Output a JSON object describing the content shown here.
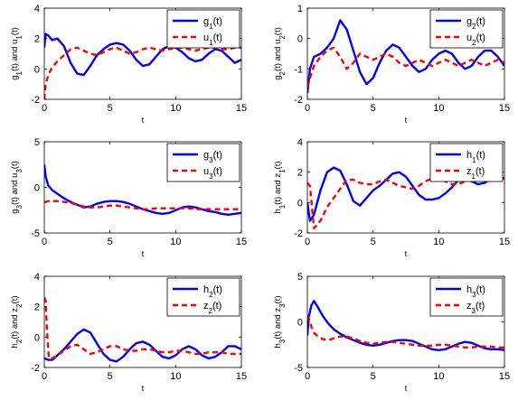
{
  "chart_data": [
    {
      "type": "line",
      "xlabel": "t",
      "ylabel": "g₁(t) and u₁(t)",
      "ylabel_parts": [
        "g",
        "1",
        "(t) and u",
        "1",
        "(t)"
      ],
      "xlim": [
        0,
        15
      ],
      "ylim": [
        -2,
        4
      ],
      "xticks": [
        0,
        5,
        10,
        15
      ],
      "yticks": [
        -2,
        0,
        2,
        4
      ],
      "legend_position": "top-right",
      "series": [
        {
          "name": "g₁(t)",
          "name_parts": [
            "g",
            "1",
            "(t)"
          ],
          "style": "solid",
          "color": "#0000ff",
          "x": [
            0.0,
            0.1,
            0.3,
            0.6,
            1.0,
            1.5,
            2.0,
            2.5,
            3.0,
            3.5,
            4.0,
            4.5,
            5.0,
            5.5,
            6.0,
            6.5,
            7.0,
            7.5,
            8.0,
            8.5,
            9.0,
            9.5,
            10.0,
            10.5,
            11.0,
            11.5,
            12.0,
            12.5,
            13.0,
            13.5,
            14.0,
            14.5,
            15.0
          ],
          "y": [
            1.4,
            2.3,
            2.2,
            1.9,
            2.0,
            1.5,
            0.4,
            -0.3,
            -0.4,
            0.2,
            0.9,
            1.3,
            1.6,
            1.7,
            1.6,
            1.2,
            0.6,
            0.2,
            0.3,
            0.8,
            1.3,
            1.5,
            1.4,
            1.1,
            0.7,
            0.5,
            0.6,
            1.0,
            1.3,
            1.2,
            0.8,
            0.4,
            0.6
          ]
        },
        {
          "name": "u₁(t)",
          "name_parts": [
            "u",
            "1",
            "(t)"
          ],
          "style": "dashed",
          "color": "#ff0000",
          "x": [
            0.0,
            0.1,
            0.3,
            0.6,
            1.0,
            1.5,
            2.0,
            2.5,
            3.0,
            3.5,
            4.0,
            4.5,
            5.0,
            5.5,
            6.0,
            6.5,
            7.0,
            7.5,
            8.0,
            8.5,
            9.0,
            9.5,
            10.0,
            10.5,
            11.0,
            11.5,
            12.0,
            12.5,
            13.0,
            13.5,
            14.0,
            14.5,
            15.0
          ],
          "y": [
            -2.0,
            -1.0,
            -0.4,
            0.1,
            0.5,
            0.9,
            1.3,
            1.4,
            1.2,
            1.0,
            0.9,
            1.1,
            1.3,
            1.4,
            1.2,
            1.0,
            1.1,
            1.3,
            1.4,
            1.3,
            1.2,
            1.3,
            1.4,
            1.4,
            1.3,
            1.2,
            1.3,
            1.4,
            1.4,
            1.3,
            1.3,
            1.4,
            1.4
          ]
        }
      ]
    },
    {
      "type": "line",
      "xlabel": "t",
      "ylabel": "g₂(t) and u₂(t)",
      "ylabel_parts": [
        "g",
        "2",
        "(t) and u",
        "2",
        "(t)"
      ],
      "xlim": [
        0,
        15
      ],
      "ylim": [
        -2,
        1
      ],
      "xticks": [
        0,
        5,
        10,
        15
      ],
      "yticks": [
        -2,
        -1,
        0,
        1
      ],
      "legend_position": "top-right",
      "series": [
        {
          "name": "g₂(t)",
          "name_parts": [
            "g",
            "2",
            "(t)"
          ],
          "style": "solid",
          "color": "#0000ff",
          "x": [
            0.0,
            0.2,
            0.5,
            1.0,
            1.5,
            2.0,
            2.5,
            3.0,
            3.5,
            4.0,
            4.5,
            5.0,
            5.5,
            6.0,
            6.5,
            7.0,
            7.5,
            8.0,
            8.5,
            9.0,
            9.5,
            10.0,
            10.5,
            11.0,
            11.5,
            12.0,
            12.5,
            13.0,
            13.5,
            14.0,
            14.5,
            15.0
          ],
          "y": [
            -1.8,
            -1.0,
            -0.6,
            -0.5,
            -0.3,
            0.0,
            0.6,
            0.3,
            -0.4,
            -1.1,
            -1.5,
            -1.3,
            -0.8,
            -0.4,
            -0.2,
            -0.3,
            -0.6,
            -0.9,
            -1.1,
            -1.0,
            -0.7,
            -0.5,
            -0.4,
            -0.5,
            -0.8,
            -1.0,
            -0.9,
            -0.6,
            -0.4,
            -0.4,
            -0.6,
            -0.9
          ]
        },
        {
          "name": "u₂(t)",
          "name_parts": [
            "u",
            "2",
            "(t)"
          ],
          "style": "dashed",
          "color": "#ff0000",
          "x": [
            0.0,
            0.2,
            0.5,
            1.0,
            1.5,
            2.0,
            2.5,
            3.0,
            3.5,
            4.0,
            4.5,
            5.0,
            5.5,
            6.0,
            6.5,
            7.0,
            7.5,
            8.0,
            8.5,
            9.0,
            9.5,
            10.0,
            10.5,
            11.0,
            11.5,
            12.0,
            12.5,
            13.0,
            13.5,
            14.0,
            14.5,
            15.0
          ],
          "y": [
            -1.6,
            -1.3,
            -0.9,
            -0.6,
            -0.4,
            -0.3,
            -0.6,
            -1.0,
            -0.8,
            -0.5,
            -0.6,
            -0.7,
            -0.6,
            -0.5,
            -0.6,
            -0.8,
            -0.9,
            -0.8,
            -0.7,
            -0.8,
            -0.9,
            -0.8,
            -0.7,
            -0.8,
            -0.9,
            -0.8,
            -0.7,
            -0.8,
            -0.9,
            -0.8,
            -0.7,
            -0.8
          ]
        }
      ]
    },
    {
      "type": "line",
      "xlabel": "t",
      "ylabel": "g₃(t) and u₃(t)",
      "ylabel_parts": [
        "g",
        "3",
        "(t) and u",
        "3",
        "(t)"
      ],
      "xlim": [
        0,
        15
      ],
      "ylim": [
        -5,
        5
      ],
      "xticks": [
        0,
        5,
        10,
        15
      ],
      "yticks": [
        -5,
        0,
        5
      ],
      "legend_position": "top-right",
      "series": [
        {
          "name": "g₃(t)",
          "name_parts": [
            "g",
            "3",
            "(t)"
          ],
          "style": "solid",
          "color": "#0000ff",
          "x": [
            0.0,
            0.1,
            0.3,
            0.6,
            1.0,
            1.5,
            2.0,
            2.5,
            3.0,
            3.5,
            4.0,
            4.5,
            5.0,
            5.5,
            6.0,
            6.5,
            7.0,
            7.5,
            8.0,
            8.5,
            9.0,
            9.5,
            10.0,
            10.5,
            11.0,
            11.5,
            12.0,
            12.5,
            13.0,
            13.5,
            14.0,
            14.5,
            15.0
          ],
          "y": [
            2.5,
            1.2,
            0.2,
            -0.3,
            -0.7,
            -1.2,
            -1.6,
            -1.9,
            -2.2,
            -2.1,
            -1.8,
            -1.6,
            -1.5,
            -1.5,
            -1.6,
            -1.8,
            -2.1,
            -2.4,
            -2.6,
            -2.8,
            -2.9,
            -2.8,
            -2.5,
            -2.2,
            -2.1,
            -2.2,
            -2.4,
            -2.6,
            -2.7,
            -2.9,
            -3.0,
            -2.9,
            -2.8
          ]
        },
        {
          "name": "u₃(t)",
          "name_parts": [
            "u",
            "3",
            "(t)"
          ],
          "style": "dashed",
          "color": "#ff0000",
          "x": [
            0.0,
            0.1,
            0.3,
            0.6,
            1.0,
            1.5,
            2.0,
            2.5,
            3.0,
            3.5,
            4.0,
            4.5,
            5.0,
            5.5,
            6.0,
            6.5,
            7.0,
            7.5,
            8.0,
            8.5,
            9.0,
            9.5,
            10.0,
            10.5,
            11.0,
            11.5,
            12.0,
            12.5,
            13.0,
            13.5,
            14.0,
            14.5,
            15.0
          ],
          "y": [
            -1.6,
            -1.6,
            -1.5,
            -1.5,
            -1.5,
            -1.6,
            -1.7,
            -1.9,
            -2.1,
            -2.2,
            -2.2,
            -2.1,
            -2.0,
            -2.0,
            -2.1,
            -2.2,
            -2.3,
            -2.4,
            -2.4,
            -2.3,
            -2.3,
            -2.3,
            -2.3,
            -2.3,
            -2.3,
            -2.4,
            -2.4,
            -2.4,
            -2.4,
            -2.4,
            -2.4,
            -2.4,
            -2.4
          ]
        }
      ]
    },
    {
      "type": "line",
      "xlabel": "t",
      "ylabel": "h₁(t) and z₁(t)",
      "ylabel_parts": [
        "h",
        "1",
        "(t) and z",
        "1",
        "(t)"
      ],
      "xlim": [
        0,
        15
      ],
      "ylim": [
        -2,
        4
      ],
      "xticks": [
        0,
        5,
        10,
        15
      ],
      "yticks": [
        -2,
        0,
        2,
        4
      ],
      "legend_position": "top-right",
      "series": [
        {
          "name": "h₁(t)",
          "name_parts": [
            "h",
            "1",
            "(t)"
          ],
          "style": "solid",
          "color": "#0000ff",
          "x": [
            0.0,
            0.2,
            0.5,
            1.0,
            1.5,
            2.0,
            2.5,
            3.0,
            3.5,
            4.0,
            4.5,
            5.0,
            5.5,
            6.0,
            6.5,
            7.0,
            7.5,
            8.0,
            8.5,
            9.0,
            9.5,
            10.0,
            10.5,
            11.0,
            11.5,
            12.0,
            12.5,
            13.0,
            13.5,
            14.0,
            14.5,
            15.0
          ],
          "y": [
            0.0,
            -1.2,
            -0.8,
            0.8,
            2.0,
            2.3,
            2.1,
            1.2,
            0.1,
            -0.2,
            0.3,
            0.8,
            1.1,
            1.5,
            1.9,
            2.0,
            1.7,
            1.1,
            0.5,
            0.2,
            0.2,
            0.3,
            0.6,
            1.0,
            1.5,
            1.6,
            1.4,
            1.2,
            1.3,
            1.6,
            1.7,
            1.6
          ]
        },
        {
          "name": "z₁(t)",
          "name_parts": [
            "z",
            "1",
            "(t)"
          ],
          "style": "dashed",
          "color": "#ff0000",
          "x": [
            0.0,
            0.2,
            0.5,
            1.0,
            1.5,
            2.0,
            2.5,
            3.0,
            3.5,
            4.0,
            4.5,
            5.0,
            5.5,
            6.0,
            6.5,
            7.0,
            7.5,
            8.0,
            8.5,
            9.0,
            9.5,
            10.0,
            10.5,
            11.0,
            11.5,
            12.0,
            12.5,
            13.0,
            13.5,
            14.0,
            14.5,
            15.0
          ],
          "y": [
            1.3,
            1.1,
            -1.7,
            -1.2,
            -0.3,
            0.3,
            0.9,
            1.5,
            1.5,
            1.3,
            1.2,
            1.2,
            1.4,
            1.5,
            1.3,
            1.1,
            1.0,
            0.9,
            1.1,
            1.4,
            1.6,
            1.6,
            1.4,
            1.2,
            1.2,
            1.4,
            1.6,
            1.6,
            1.5,
            1.4,
            1.5,
            1.6
          ]
        }
      ]
    },
    {
      "type": "line",
      "xlabel": "t",
      "ylabel": "h₂(t) and z₂(t)",
      "ylabel_parts": [
        "h",
        "2",
        "(t) and z",
        "2",
        "(t)"
      ],
      "xlim": [
        0,
        15
      ],
      "ylim": [
        -2,
        4
      ],
      "xticks": [
        0,
        5,
        10,
        15
      ],
      "yticks": [
        -2,
        0,
        2,
        4
      ],
      "legend_position": "top-right",
      "series": [
        {
          "name": "h₂(t)",
          "name_parts": [
            "h",
            "2",
            "(t)"
          ],
          "style": "solid",
          "color": "#0000ff",
          "x": [
            0.0,
            0.3,
            0.6,
            1.0,
            1.5,
            2.0,
            2.5,
            3.0,
            3.5,
            4.0,
            4.5,
            5.0,
            5.5,
            6.0,
            6.5,
            7.0,
            7.5,
            8.0,
            8.5,
            9.0,
            9.5,
            10.0,
            10.5,
            11.0,
            11.5,
            12.0,
            12.5,
            13.0,
            13.5,
            14.0,
            14.5,
            15.0
          ],
          "y": [
            -1.4,
            -1.5,
            -1.5,
            -1.2,
            -0.8,
            -0.3,
            0.2,
            0.5,
            0.3,
            -0.4,
            -1.1,
            -1.5,
            -1.6,
            -1.3,
            -0.8,
            -0.4,
            -0.3,
            -0.5,
            -0.9,
            -1.3,
            -1.4,
            -1.2,
            -0.8,
            -0.6,
            -0.8,
            -1.2,
            -1.4,
            -1.3,
            -1.0,
            -0.6,
            -0.6,
            -0.8
          ]
        },
        {
          "name": "z₂(t)",
          "name_parts": [
            "z",
            "2",
            "(t)"
          ],
          "style": "dashed",
          "color": "#ff0000",
          "x": [
            0.0,
            0.1,
            0.2,
            0.35,
            0.6,
            1.0,
            1.5,
            2.0,
            2.5,
            3.0,
            3.5,
            4.0,
            4.5,
            5.0,
            5.5,
            6.0,
            6.5,
            7.0,
            7.5,
            8.0,
            8.5,
            9.0,
            9.5,
            10.0,
            10.5,
            11.0,
            11.5,
            12.0,
            12.5,
            13.0,
            13.5,
            14.0,
            14.5,
            15.0
          ],
          "y": [
            2.6,
            2.4,
            0.5,
            -1.4,
            -1.4,
            -1.2,
            -0.9,
            -0.6,
            -0.5,
            -0.8,
            -1.1,
            -1.0,
            -0.8,
            -0.6,
            -0.6,
            -0.8,
            -0.9,
            -0.9,
            -0.8,
            -0.8,
            -0.9,
            -1.0,
            -1.0,
            -0.9,
            -0.9,
            -1.0,
            -1.1,
            -1.1,
            -1.0,
            -1.0,
            -1.0,
            -1.1,
            -1.1,
            -1.1
          ]
        }
      ]
    },
    {
      "type": "line",
      "xlabel": "t",
      "ylabel": "h₃(t) and z₃(t)",
      "ylabel_parts": [
        "h",
        "3",
        "(t) and z",
        "3",
        "(t)"
      ],
      "xlim": [
        0,
        15
      ],
      "ylim": [
        -5,
        5
      ],
      "xticks": [
        0,
        5,
        10,
        15
      ],
      "yticks": [
        -5,
        0,
        5
      ],
      "legend_position": "top-right",
      "series": [
        {
          "name": "h₃(t)",
          "name_parts": [
            "h",
            "3",
            "(t)"
          ],
          "style": "solid",
          "color": "#0000ff",
          "x": [
            0.0,
            0.1,
            0.3,
            0.5,
            0.8,
            1.2,
            1.6,
            2.0,
            2.5,
            3.0,
            3.5,
            4.0,
            4.5,
            5.0,
            5.5,
            6.0,
            6.5,
            7.0,
            7.5,
            8.0,
            8.5,
            9.0,
            9.5,
            10.0,
            10.5,
            11.0,
            11.5,
            12.0,
            12.5,
            13.0,
            13.5,
            14.0,
            14.5,
            15.0
          ],
          "y": [
            -1.5,
            0.5,
            1.8,
            2.3,
            1.6,
            0.6,
            -0.2,
            -0.8,
            -1.3,
            -1.7,
            -2.0,
            -2.3,
            -2.5,
            -2.6,
            -2.5,
            -2.3,
            -2.1,
            -2.0,
            -2.0,
            -2.1,
            -2.4,
            -2.7,
            -3.0,
            -3.1,
            -3.0,
            -2.7,
            -2.4,
            -2.2,
            -2.3,
            -2.6,
            -2.9,
            -3.0,
            -3.0,
            -3.1
          ]
        },
        {
          "name": "z₃(t)",
          "name_parts": [
            "z",
            "3",
            "(t)"
          ],
          "style": "dashed",
          "color": "#ff0000",
          "x": [
            0.0,
            0.1,
            0.3,
            0.5,
            0.8,
            1.2,
            1.6,
            2.0,
            2.5,
            3.0,
            3.5,
            4.0,
            4.5,
            5.0,
            5.5,
            6.0,
            6.5,
            7.0,
            7.5,
            8.0,
            8.5,
            9.0,
            9.5,
            10.0,
            10.5,
            11.0,
            11.5,
            12.0,
            12.5,
            13.0,
            13.5,
            14.0,
            14.5,
            15.0
          ],
          "y": [
            0.7,
            0.4,
            -0.5,
            -1.2,
            -1.6,
            -1.9,
            -2.0,
            -1.8,
            -1.6,
            -1.6,
            -1.8,
            -2.1,
            -2.3,
            -2.4,
            -2.3,
            -2.2,
            -2.2,
            -2.3,
            -2.4,
            -2.5,
            -2.6,
            -2.6,
            -2.6,
            -2.5,
            -2.5,
            -2.6,
            -2.7,
            -2.8,
            -2.8,
            -2.7,
            -2.7,
            -2.7,
            -2.8,
            -2.8
          ]
        }
      ]
    }
  ]
}
